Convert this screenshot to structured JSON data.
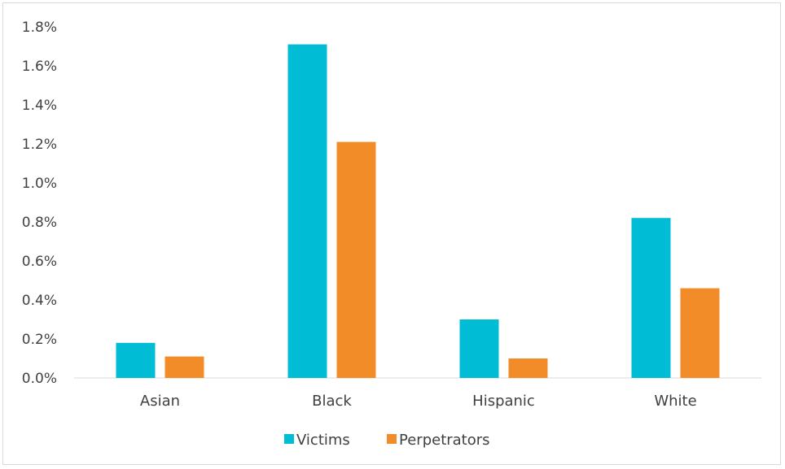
{
  "chart_data": {
    "type": "bar",
    "categories": [
      "Asian",
      "Black",
      "Hispanic",
      "White"
    ],
    "series": [
      {
        "name": "Victims",
        "values": [
          0.18,
          1.71,
          0.3,
          0.82
        ],
        "color": "#00BCD4"
      },
      {
        "name": "Perpetrators",
        "values": [
          0.11,
          1.21,
          0.1,
          0.46
        ],
        "color": "#F28C28"
      }
    ],
    "yticks": [
      "0.0%",
      "0.2%",
      "0.4%",
      "0.6%",
      "0.8%",
      "1.0%",
      "1.2%",
      "1.4%",
      "1.6%",
      "1.8%"
    ],
    "ylim": [
      0,
      1.8
    ],
    "ylabel_unit": "%",
    "legend_position": "bottom",
    "grid": false
  }
}
